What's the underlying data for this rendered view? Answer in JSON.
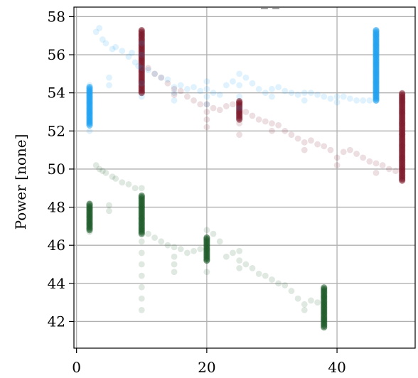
{
  "chart_data": {
    "type": "scatter",
    "title": "_ _",
    "xlabel": "",
    "ylabel": "Power [none]",
    "xlim": [
      -0.4,
      52
    ],
    "ylim": [
      40.6,
      58.5
    ],
    "xticks": [
      0,
      20,
      40
    ],
    "yticks": [
      42,
      44,
      46,
      48,
      50,
      52,
      54,
      56,
      58
    ],
    "grid": true,
    "legend": "none",
    "series": [
      {
        "color": "#1ea0f0",
        "points": [
          [
            2,
            52.0
          ],
          [
            2,
            52.5
          ],
          [
            2,
            53.0
          ],
          [
            2,
            53.5
          ],
          [
            2,
            54.0
          ],
          [
            2,
            54.4
          ],
          [
            3,
            57.2
          ],
          [
            3.5,
            57.4
          ],
          [
            4,
            56.8
          ],
          [
            4.5,
            56.6
          ],
          [
            5,
            54.4
          ],
          [
            5,
            54.8
          ],
          [
            5.5,
            56.3
          ],
          [
            6,
            56.4
          ],
          [
            7,
            56.2
          ],
          [
            8,
            55.9
          ],
          [
            8.5,
            56.1
          ],
          [
            9,
            55.6
          ],
          [
            9.5,
            55.4
          ],
          [
            10,
            53.8
          ],
          [
            10,
            54.5
          ],
          [
            10,
            55.3
          ],
          [
            10,
            56.0
          ],
          [
            10,
            56.6
          ],
          [
            11,
            55.2
          ],
          [
            12,
            55.0
          ],
          [
            13,
            54.8
          ],
          [
            14,
            54.7
          ],
          [
            15,
            53.6
          ],
          [
            15,
            54.0
          ],
          [
            15,
            54.3
          ],
          [
            16,
            54.4
          ],
          [
            17,
            54.2
          ],
          [
            18,
            54.3
          ],
          [
            19,
            54.1
          ],
          [
            20,
            53.4
          ],
          [
            20,
            53.8
          ],
          [
            20,
            54.2
          ],
          [
            20,
            54.6
          ],
          [
            21,
            54.0
          ],
          [
            22,
            53.9
          ],
          [
            23,
            54.4
          ],
          [
            24,
            54.6
          ],
          [
            25,
            53.2
          ],
          [
            25,
            53.8
          ],
          [
            25,
            54.4
          ],
          [
            25,
            55.0
          ],
          [
            26,
            54.8
          ],
          [
            27,
            54.5
          ],
          [
            28,
            54.2
          ],
          [
            29,
            54.0
          ],
          [
            30,
            53.8
          ],
          [
            30,
            54.2
          ],
          [
            31,
            54.3
          ],
          [
            32,
            54.1
          ],
          [
            33,
            54.0
          ],
          [
            34,
            53.9
          ],
          [
            35,
            53.6
          ],
          [
            35,
            54.0
          ],
          [
            36,
            54.0
          ],
          [
            37,
            53.9
          ],
          [
            38,
            53.8
          ],
          [
            39,
            53.7
          ],
          [
            40,
            53.5
          ],
          [
            40,
            53.8
          ],
          [
            41,
            53.8
          ],
          [
            42,
            53.7
          ],
          [
            43,
            53.6
          ],
          [
            44,
            53.6
          ],
          [
            45,
            53.6
          ],
          [
            46,
            53.6
          ],
          [
            46,
            54.0
          ],
          [
            46,
            54.5
          ],
          [
            46,
            55.0
          ],
          [
            46,
            55.5
          ],
          [
            46,
            56.0
          ],
          [
            46,
            56.5
          ],
          [
            46,
            57.0
          ],
          [
            46,
            57.3
          ]
        ]
      },
      {
        "color": "#7b1828",
        "points": [
          [
            10,
            54.0
          ],
          [
            10,
            54.6
          ],
          [
            10,
            55.2
          ],
          [
            10,
            55.8
          ],
          [
            10,
            56.4
          ],
          [
            10,
            57.0
          ],
          [
            10,
            57.3
          ],
          [
            11,
            55.3
          ],
          [
            12,
            55.0
          ],
          [
            13,
            54.8
          ],
          [
            14,
            54.5
          ],
          [
            15,
            53.9
          ],
          [
            15,
            54.2
          ],
          [
            16,
            54.1
          ],
          [
            17,
            53.8
          ],
          [
            18,
            53.6
          ],
          [
            19,
            53.4
          ],
          [
            20,
            52.2
          ],
          [
            20,
            52.6
          ],
          [
            20,
            53.0
          ],
          [
            20,
            53.4
          ],
          [
            21,
            53.2
          ],
          [
            22,
            53.1
          ],
          [
            23,
            53.3
          ],
          [
            24,
            53.4
          ],
          [
            25,
            51.8
          ],
          [
            25,
            52.4
          ],
          [
            25,
            53.0
          ],
          [
            25,
            53.5
          ],
          [
            26,
            53.0
          ],
          [
            27,
            52.8
          ],
          [
            28,
            52.6
          ],
          [
            29,
            52.5
          ],
          [
            30,
            52.0
          ],
          [
            30,
            52.4
          ],
          [
            31,
            52.3
          ],
          [
            32,
            52.0
          ],
          [
            33,
            51.8
          ],
          [
            34,
            51.6
          ],
          [
            35,
            51.0
          ],
          [
            35,
            51.4
          ],
          [
            36,
            51.5
          ],
          [
            37,
            51.3
          ],
          [
            38,
            51.2
          ],
          [
            39,
            51.0
          ],
          [
            40,
            50.2
          ],
          [
            40,
            50.6
          ],
          [
            41,
            50.9
          ],
          [
            42,
            51.0
          ],
          [
            43,
            50.8
          ],
          [
            44,
            50.6
          ],
          [
            45,
            50.4
          ],
          [
            46,
            49.8
          ],
          [
            46,
            50.3
          ],
          [
            47,
            50.2
          ],
          [
            48,
            50.0
          ],
          [
            49,
            49.9
          ],
          [
            50,
            49.4
          ],
          [
            50,
            50.0
          ],
          [
            50,
            50.6
          ],
          [
            50,
            51.2
          ],
          [
            50,
            51.8
          ],
          [
            50,
            52.4
          ],
          [
            50,
            53.0
          ],
          [
            50,
            53.6
          ],
          [
            50,
            54.0
          ]
        ]
      },
      {
        "color": "#1e5a28",
        "points": [
          [
            2,
            46.7
          ],
          [
            2,
            47.1
          ],
          [
            2,
            47.5
          ],
          [
            2,
            47.9
          ],
          [
            2,
            48.2
          ],
          [
            3,
            50.2
          ],
          [
            3.5,
            50.0
          ],
          [
            4,
            49.9
          ],
          [
            4.5,
            49.8
          ],
          [
            5,
            47.8
          ],
          [
            5,
            48.1
          ],
          [
            5.5,
            49.6
          ],
          [
            6,
            49.5
          ],
          [
            7,
            49.3
          ],
          [
            8,
            49.2
          ],
          [
            9,
            49.0
          ],
          [
            10,
            42.6
          ],
          [
            10,
            43.2
          ],
          [
            10,
            43.8
          ],
          [
            10,
            44.4
          ],
          [
            10,
            45.0
          ],
          [
            10,
            45.6
          ],
          [
            10,
            46.2
          ],
          [
            10,
            46.8
          ],
          [
            10,
            47.4
          ],
          [
            10,
            48.0
          ],
          [
            10,
            48.6
          ],
          [
            10,
            49.0
          ],
          [
            11,
            46.6
          ],
          [
            12,
            46.4
          ],
          [
            13,
            46.2
          ],
          [
            14,
            46.0
          ],
          [
            15,
            44.6
          ],
          [
            15,
            45.0
          ],
          [
            15,
            45.4
          ],
          [
            15,
            45.9
          ],
          [
            16,
            45.8
          ],
          [
            17,
            45.6
          ],
          [
            18,
            45.7
          ],
          [
            19,
            45.8
          ],
          [
            20,
            44.6
          ],
          [
            20,
            45.2
          ],
          [
            20,
            45.8
          ],
          [
            20,
            46.4
          ],
          [
            20,
            46.8
          ],
          [
            21,
            46.6
          ],
          [
            22,
            46.2
          ],
          [
            23,
            45.4
          ],
          [
            24,
            45.6
          ],
          [
            25,
            44.8
          ],
          [
            25,
            45.2
          ],
          [
            25,
            45.7
          ],
          [
            26,
            45.0
          ],
          [
            27,
            44.8
          ],
          [
            28,
            44.5
          ],
          [
            29,
            44.4
          ],
          [
            30,
            44.2
          ],
          [
            31,
            44.0
          ],
          [
            32,
            43.9
          ],
          [
            33,
            43.6
          ],
          [
            34,
            43.2
          ],
          [
            35,
            42.6
          ],
          [
            35,
            42.9
          ],
          [
            36,
            43.1
          ],
          [
            37,
            43.0
          ],
          [
            38,
            41.7
          ],
          [
            38,
            42.1
          ],
          [
            38,
            42.5
          ],
          [
            38,
            42.9
          ],
          [
            38,
            43.3
          ],
          [
            38,
            43.7
          ]
        ]
      }
    ],
    "dense_columns": [
      {
        "color": "#1ea0f0",
        "x": 2,
        "y": [
          52.3,
          54.3
        ]
      },
      {
        "color": "#1ea0f0",
        "x": 46,
        "y": [
          53.6,
          57.3
        ]
      },
      {
        "color": "#7b1828",
        "x": 10,
        "y": [
          54.0,
          57.3
        ]
      },
      {
        "color": "#7b1828",
        "x": 50,
        "y": [
          49.4,
          54.0
        ]
      },
      {
        "color": "#7b1828",
        "x": 25,
        "y": [
          52.6,
          53.6
        ]
      },
      {
        "color": "#1e5a28",
        "x": 2,
        "y": [
          46.8,
          48.2
        ]
      },
      {
        "color": "#1e5a28",
        "x": 10,
        "y": [
          46.6,
          48.6
        ]
      },
      {
        "color": "#1e5a28",
        "x": 38,
        "y": [
          41.7,
          43.8
        ]
      },
      {
        "color": "#1e5a28",
        "x": 20,
        "y": [
          45.2,
          46.4
        ]
      }
    ]
  }
}
